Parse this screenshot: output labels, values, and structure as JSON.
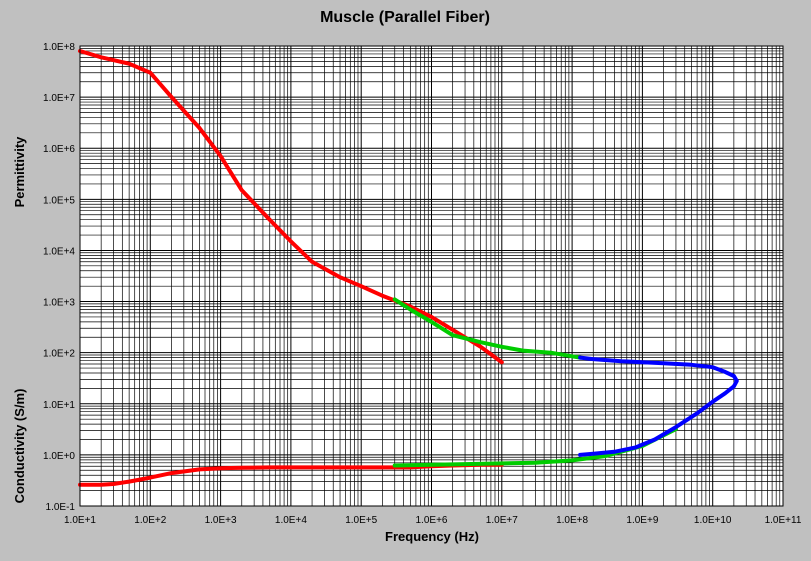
{
  "chart_data": {
    "type": "line",
    "title": "Muscle (Parallel Fiber)",
    "xlabel": "Frequency (Hz)",
    "ylabel_upper": "Permittivity",
    "ylabel_lower": "Conductivity (S/m)",
    "xscale": "log",
    "yscale": "log",
    "xlim": [
      10,
      100000000000
    ],
    "ylim": [
      0.1,
      100000000
    ],
    "grid": true,
    "legend": "none",
    "x_tick_labels": [
      "1.0E+1",
      "1.0E+2",
      "1.0E+3",
      "1.0E+4",
      "1.0E+5",
      "1.0E+6",
      "1.0E+7",
      "1.0E+8",
      "1.0E+9",
      "1.0E+10",
      "1.0E+11"
    ],
    "y_tick_labels": [
      "1.0E-1",
      "1.0E+0",
      "1.0E+1",
      "1.0E+2",
      "1.0E+3",
      "1.0E+4",
      "1.0E+5",
      "1.0E+6",
      "1.0E+7",
      "1.0E+8"
    ],
    "series": [
      {
        "color": "#ff0000",
        "x": [
          10,
          20,
          50,
          100,
          200,
          500,
          1000,
          2000,
          5000,
          10000,
          20000,
          50000,
          100000,
          200000,
          500000,
          1000000,
          2000000,
          5000000,
          10000000
        ],
        "y": [
          80000000,
          60000000,
          45000000,
          30000000,
          10000000,
          2500000,
          700000,
          150000,
          40000,
          15000,
          6000,
          3000,
          2000,
          1300,
          800,
          500,
          280,
          130,
          65
        ]
      },
      {
        "color": "#ff0000",
        "x": [
          10,
          20,
          30,
          50,
          100,
          200,
          500,
          1000,
          2000,
          5000,
          10000,
          20000,
          50000,
          100000,
          200000,
          500000,
          1000000,
          2000000,
          5000000,
          10000000
        ],
        "y": [
          0.26,
          0.26,
          0.27,
          0.3,
          0.36,
          0.44,
          0.52,
          0.55,
          0.56,
          0.57,
          0.57,
          0.57,
          0.57,
          0.57,
          0.57,
          0.57,
          0.6,
          0.62,
          0.64,
          0.64
        ]
      },
      {
        "color": "#00cc00",
        "x": [
          300000,
          500000,
          1000000,
          2000000,
          5000000,
          10000000,
          20000000,
          50000000,
          100000000,
          130000000
        ],
        "y": [
          1100,
          700,
          400,
          220,
          160,
          130,
          110,
          100,
          85,
          80
        ]
      },
      {
        "color": "#00cc00",
        "x": [
          300000,
          1000000,
          3000000,
          10000000,
          30000000,
          100000000,
          300000000,
          1000000000,
          3000000000
        ],
        "y": [
          0.62,
          0.64,
          0.66,
          0.68,
          0.7,
          0.78,
          0.95,
          1.5,
          3.2
        ]
      },
      {
        "color": "#0000ff",
        "x": [
          130000000,
          200000000,
          500000000,
          1000000000,
          2000000000,
          5000000000,
          10000000000,
          15000000000,
          20000000000,
          22000000000,
          20000000000,
          15000000000,
          10000000000,
          6000000000,
          3000000000,
          1500000000,
          800000000,
          400000000,
          200000000,
          130000000
        ],
        "y": [
          80,
          75,
          68,
          65,
          62,
          58,
          52,
          42,
          35,
          28,
          22,
          16,
          11,
          6.5,
          3.5,
          2,
          1.4,
          1.15,
          1.05,
          1.0
        ]
      }
    ]
  }
}
